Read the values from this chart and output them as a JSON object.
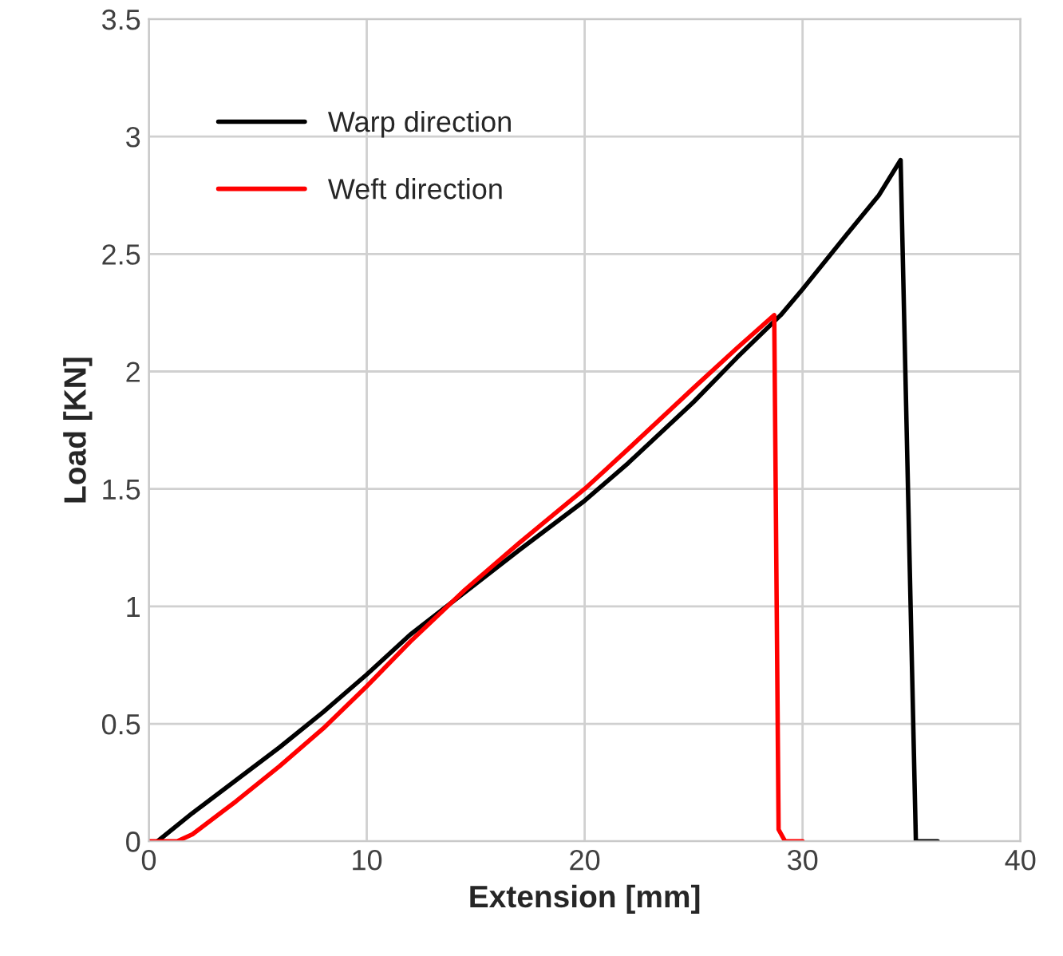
{
  "chart_data": {
    "type": "line",
    "xlabel": "Extension [mm]",
    "ylabel": "Load [KN]",
    "xlim": [
      0,
      40
    ],
    "xticks": [
      0,
      10,
      20,
      30,
      40
    ],
    "ylim": [
      0,
      3.5
    ],
    "yticks": [
      0,
      0.5,
      1,
      1.5,
      2,
      2.5,
      3,
      3.5
    ],
    "grid": true,
    "legend": "top left",
    "line_style": "solid",
    "marker": "none",
    "series": [
      {
        "name": "Warp direction",
        "color": "#000000",
        "x": [
          0.4,
          2,
          4,
          6,
          8,
          10,
          12,
          14.5,
          17,
          20,
          22,
          25,
          27,
          29,
          30,
          32,
          33.5,
          34.5,
          35.2,
          36.2
        ],
        "values": [
          0,
          0.12,
          0.26,
          0.4,
          0.55,
          0.71,
          0.88,
          1.06,
          1.24,
          1.45,
          1.61,
          1.87,
          2.06,
          2.24,
          2.35,
          2.58,
          2.75,
          2.9,
          0,
          0
        ]
      },
      {
        "name": "Weft direction",
        "color": "#ff0000",
        "x": [
          0,
          1.3,
          2,
          4,
          6,
          8,
          10,
          12,
          14.5,
          17,
          20,
          22,
          25,
          27,
          28.7,
          28.9,
          29.2,
          30
        ],
        "values": [
          0,
          0,
          0.03,
          0.17,
          0.32,
          0.48,
          0.66,
          0.85,
          1.07,
          1.27,
          1.5,
          1.67,
          1.93,
          2.1,
          2.24,
          0.05,
          0,
          0
        ]
      }
    ]
  }
}
